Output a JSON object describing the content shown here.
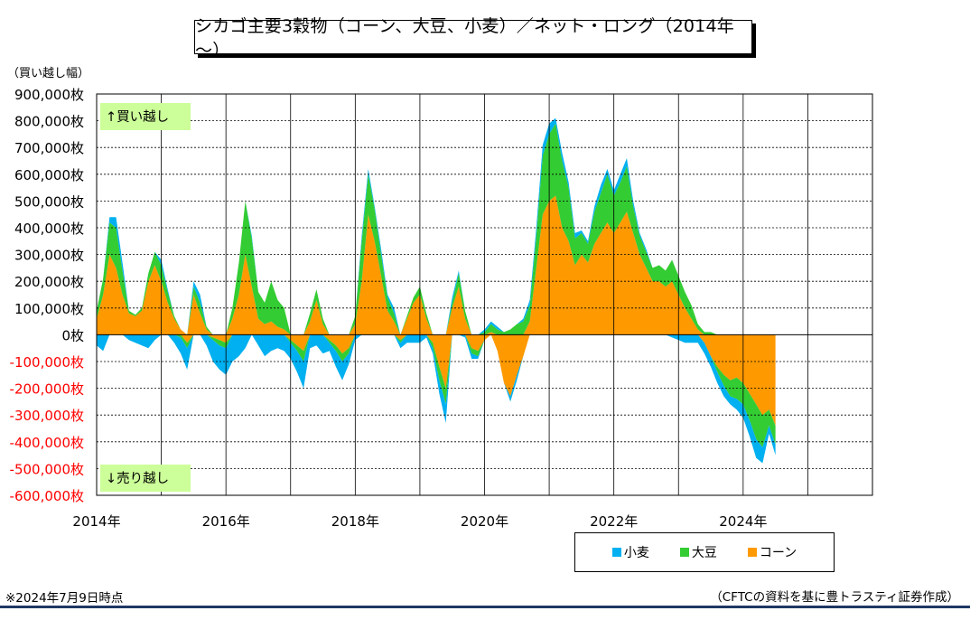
{
  "chart_data": {
    "type": "area",
    "title": "シカゴ主要3穀物（コーン、大豆、小麦）／ネット・ロング（2014年～）",
    "ylabel": "（買い越し幅）",
    "ylim": [
      -600000,
      900000
    ],
    "yticks": [
      {
        "value": 900000,
        "label": "900,000枚"
      },
      {
        "value": 800000,
        "label": "800,000枚"
      },
      {
        "value": 700000,
        "label": "700,000枚"
      },
      {
        "value": 600000,
        "label": "600,000枚"
      },
      {
        "value": 500000,
        "label": "500,000枚"
      },
      {
        "value": 400000,
        "label": "400,000枚"
      },
      {
        "value": 300000,
        "label": "300,000枚"
      },
      {
        "value": 200000,
        "label": "200,000枚"
      },
      {
        "value": 100000,
        "label": "100,000枚"
      },
      {
        "value": 0,
        "label": "0枚"
      },
      {
        "value": -100000,
        "label": "-100,000枚"
      },
      {
        "value": -200000,
        "label": "-200,000枚"
      },
      {
        "value": -300000,
        "label": "-300,000枚"
      },
      {
        "value": -400000,
        "label": "-400,000枚"
      },
      {
        "value": -500000,
        "label": "-500,000枚"
      },
      {
        "value": -600000,
        "label": "-600,000枚"
      }
    ],
    "xlim": [
      2014.0,
      2026.0
    ],
    "xticks": [
      {
        "value": 2014,
        "label": "2014年"
      },
      {
        "value": 2016,
        "label": "2016年"
      },
      {
        "value": 2018,
        "label": "2018年"
      },
      {
        "value": 2020,
        "label": "2020年"
      },
      {
        "value": 2022,
        "label": "2022年"
      },
      {
        "value": 2024,
        "label": "2024年"
      }
    ],
    "x": [
      2014.0,
      2014.1,
      2014.2,
      2014.3,
      2014.4,
      2014.5,
      2014.6,
      2014.7,
      2014.8,
      2014.9,
      2015.0,
      2015.1,
      2015.2,
      2015.3,
      2015.4,
      2015.5,
      2015.6,
      2015.7,
      2015.8,
      2015.9,
      2016.0,
      2016.1,
      2016.2,
      2016.3,
      2016.4,
      2016.5,
      2016.6,
      2016.7,
      2016.8,
      2016.9,
      2017.0,
      2017.1,
      2017.2,
      2017.3,
      2017.4,
      2017.5,
      2017.6,
      2017.7,
      2017.8,
      2017.9,
      2018.0,
      2018.1,
      2018.2,
      2018.3,
      2018.4,
      2018.5,
      2018.6,
      2018.7,
      2018.8,
      2018.9,
      2019.0,
      2019.1,
      2019.2,
      2019.3,
      2019.4,
      2019.5,
      2019.6,
      2019.7,
      2019.8,
      2019.9,
      2020.0,
      2020.1,
      2020.2,
      2020.3,
      2020.4,
      2020.5,
      2020.6,
      2020.7,
      2020.8,
      2020.9,
      2021.0,
      2021.1,
      2021.2,
      2021.3,
      2021.4,
      2021.5,
      2021.6,
      2021.7,
      2021.8,
      2021.9,
      2022.0,
      2022.1,
      2022.2,
      2022.3,
      2022.4,
      2022.5,
      2022.6,
      2022.7,
      2022.8,
      2022.9,
      2023.0,
      2023.1,
      2023.2,
      2023.3,
      2023.4,
      2023.5,
      2023.6,
      2023.7,
      2023.8,
      2023.9,
      2024.0,
      2024.1,
      2024.2,
      2024.3,
      2024.4,
      2024.5
    ],
    "series": [
      {
        "name": "コーン",
        "color": "#ff9900",
        "values": [
          60000,
          150000,
          300000,
          250000,
          150000,
          80000,
          70000,
          90000,
          200000,
          260000,
          200000,
          120000,
          60000,
          20000,
          -30000,
          150000,
          80000,
          20000,
          -10000,
          -20000,
          -30000,
          60000,
          150000,
          300000,
          180000,
          60000,
          40000,
          50000,
          30000,
          20000,
          -20000,
          -40000,
          -60000,
          50000,
          130000,
          40000,
          -20000,
          -40000,
          -70000,
          -50000,
          40000,
          200000,
          450000,
          350000,
          220000,
          90000,
          50000,
          -20000,
          60000,
          120000,
          150000,
          60000,
          -30000,
          -120000,
          -200000,
          100000,
          180000,
          60000,
          -50000,
          -60000,
          -20000,
          10000,
          -60000,
          -180000,
          -230000,
          -150000,
          -80000,
          50000,
          250000,
          450000,
          500000,
          520000,
          400000,
          350000,
          260000,
          300000,
          270000,
          340000,
          380000,
          420000,
          380000,
          420000,
          460000,
          380000,
          300000,
          250000,
          200000,
          200000,
          180000,
          200000,
          150000,
          100000,
          60000,
          20000,
          -30000,
          -80000,
          -120000,
          -150000,
          -170000,
          -160000,
          -180000,
          -220000,
          -260000,
          -300000,
          -280000,
          -340000
        ]
      },
      {
        "name": "大豆",
        "color": "#33cc33",
        "values": [
          30000,
          60000,
          120000,
          150000,
          90000,
          10000,
          5000,
          10000,
          30000,
          50000,
          60000,
          40000,
          10000,
          -10000,
          -20000,
          30000,
          40000,
          10000,
          -10000,
          -20000,
          -20000,
          40000,
          120000,
          200000,
          180000,
          100000,
          80000,
          150000,
          100000,
          80000,
          -10000,
          -20000,
          -40000,
          30000,
          40000,
          20000,
          -10000,
          -20000,
          -30000,
          -20000,
          30000,
          150000,
          150000,
          120000,
          80000,
          50000,
          30000,
          -10000,
          10000,
          20000,
          30000,
          20000,
          -20000,
          -50000,
          -60000,
          20000,
          50000,
          30000,
          -20000,
          -20000,
          10000,
          30000,
          20000,
          10000,
          20000,
          40000,
          50000,
          60000,
          120000,
          220000,
          250000,
          270000,
          250000,
          200000,
          100000,
          80000,
          70000,
          120000,
          150000,
          180000,
          140000,
          150000,
          170000,
          100000,
          70000,
          60000,
          50000,
          60000,
          60000,
          80000,
          70000,
          60000,
          50000,
          20000,
          10000,
          10000,
          -20000,
          -40000,
          -60000,
          -80000,
          -80000,
          -100000,
          -130000,
          -120000,
          -60000,
          -70000
        ]
      },
      {
        "name": "小麦",
        "color": "#00b0f0",
        "values": [
          -40000,
          -60000,
          20000,
          40000,
          30000,
          -20000,
          -30000,
          -40000,
          -50000,
          -20000,
          20000,
          10000,
          -30000,
          -60000,
          -80000,
          20000,
          30000,
          -40000,
          -80000,
          -90000,
          -100000,
          -100000,
          -80000,
          -50000,
          10000,
          -40000,
          -80000,
          -60000,
          -50000,
          -60000,
          -60000,
          -80000,
          -100000,
          -50000,
          -40000,
          -70000,
          -30000,
          -60000,
          -70000,
          -40000,
          -20000,
          20000,
          20000,
          10000,
          20000,
          10000,
          20000,
          -20000,
          -30000,
          -30000,
          -30000,
          -10000,
          -20000,
          -50000,
          -70000,
          20000,
          10000,
          -10000,
          -20000,
          -10000,
          10000,
          10000,
          10000,
          0,
          -20000,
          -20000,
          10000,
          20000,
          30000,
          40000,
          40000,
          20000,
          30000,
          20000,
          20000,
          10000,
          10000,
          20000,
          30000,
          20000,
          20000,
          30000,
          30000,
          20000,
          10000,
          10000,
          0,
          0,
          0,
          -10000,
          -20000,
          -30000,
          -30000,
          -30000,
          -40000,
          -40000,
          -40000,
          -40000,
          -30000,
          -40000,
          -50000,
          -60000,
          -70000,
          -60000,
          -30000,
          -40000
        ]
      }
    ],
    "annotations": [
      {
        "text": "↑買い越し",
        "position": "top-left",
        "color": "#ccff99"
      },
      {
        "text": "↓売り越し",
        "position": "bottom-left",
        "color": "#ccff99"
      }
    ],
    "negative_label_color": "#ff0000",
    "grid": true,
    "legend": "bottom-right"
  },
  "legend_items": [
    {
      "name": "小麦",
      "color": "#00b0f0"
    },
    {
      "name": "大豆",
      "color": "#33cc33"
    },
    {
      "name": "コーン",
      "color": "#ff9900"
    }
  ],
  "footnote": "※2024年7月9日時点",
  "source": "（CFTCの資料を基に豊トラスティ証券作成）"
}
